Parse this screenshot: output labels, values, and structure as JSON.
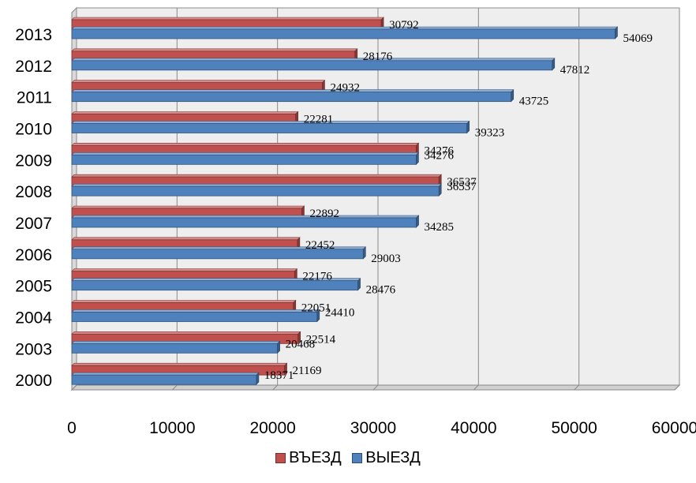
{
  "chart_data": {
    "type": "bar",
    "orientation": "horizontal",
    "categories": [
      "2000",
      "2003",
      "2004",
      "2005",
      "2006",
      "2007",
      "2008",
      "2009",
      "2010",
      "2011",
      "2012",
      "2013"
    ],
    "series": [
      {
        "name": "ВЪЕЗД",
        "color": "#C0504D",
        "values": [
          21169,
          22514,
          22051,
          22176,
          22452,
          22892,
          36537,
          34276,
          22281,
          24932,
          28176,
          30792
        ]
      },
      {
        "name": "ВЫЕЗД",
        "color": "#4F81BD",
        "values": [
          18371,
          20468,
          24410,
          28476,
          29003,
          34285,
          36537,
          34276,
          39323,
          43725,
          47812,
          54069
        ]
      }
    ],
    "xticks": [
      "0",
      "10000",
      "20000",
      "30000",
      "40000",
      "50000",
      "60000"
    ],
    "xlim": [
      0,
      60000
    ],
    "grid": true,
    "legend_position": "bottom"
  }
}
